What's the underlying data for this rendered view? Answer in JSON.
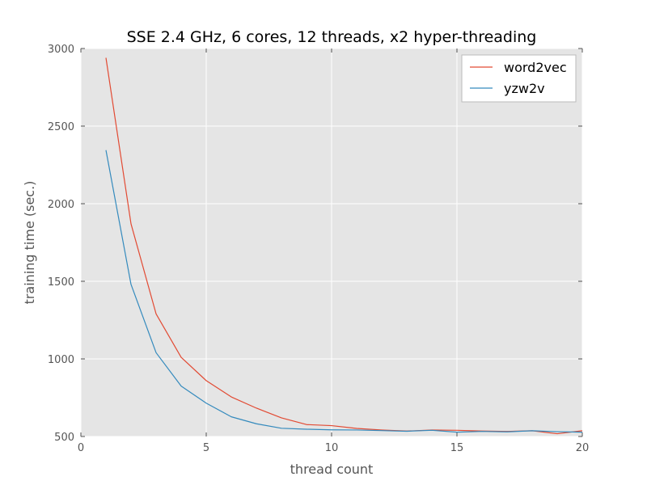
{
  "chart_data": {
    "type": "line",
    "title": "SSE 2.4 GHz, 6 cores, 12 threads, x2 hyper-threading",
    "xlabel": "thread count",
    "ylabel": "training time (sec.)",
    "xlim": [
      0,
      20
    ],
    "ylim": [
      500,
      3000
    ],
    "xticks": [
      "0",
      "5",
      "10",
      "15",
      "20"
    ],
    "yticks": [
      "500",
      "1000",
      "1500",
      "2000",
      "2500",
      "3000"
    ],
    "grid": true,
    "legend_position": "top-right",
    "x": [
      1,
      2,
      3,
      4,
      5,
      6,
      7,
      8,
      9,
      10,
      11,
      12,
      13,
      14,
      15,
      16,
      17,
      18,
      19,
      20
    ],
    "series": [
      {
        "name": "word2vec",
        "color": "#e24a33",
        "values": [
          2940,
          1870,
          1290,
          1010,
          860,
          755,
          683,
          620,
          577,
          570,
          552,
          542,
          535,
          542,
          540,
          535,
          533,
          537,
          518,
          537
        ]
      },
      {
        "name": "yzw2v",
        "color": "#348abd",
        "values": [
          2345,
          1480,
          1040,
          825,
          715,
          627,
          582,
          553,
          547,
          543,
          542,
          538,
          534,
          540,
          528,
          533,
          530,
          537,
          531,
          528
        ]
      }
    ]
  }
}
